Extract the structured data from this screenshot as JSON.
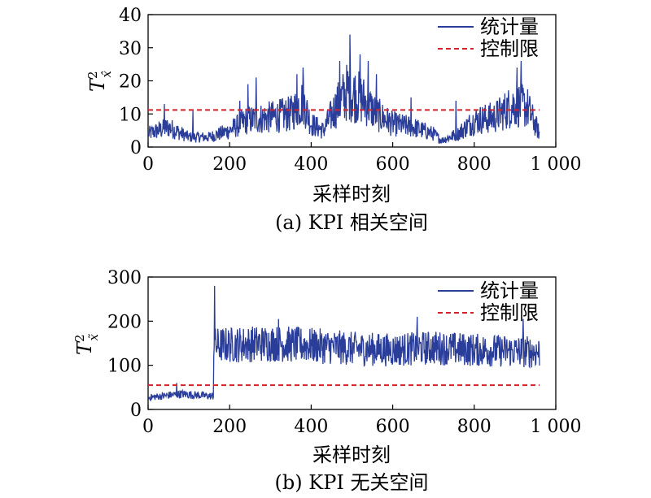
{
  "chart_data": [
    {
      "type": "line",
      "caption": "(a) KPI 相关空间",
      "xlabel": "采样时刻",
      "ylabel": "T²x̂",
      "ylabel_main": "T",
      "ylabel_sup": "2",
      "ylabel_sub": "x̂",
      "xlim": [
        0,
        1000
      ],
      "ylim": [
        0,
        40
      ],
      "x_ticks": [
        0,
        200,
        400,
        600,
        800,
        1000
      ],
      "x_tick_labels": [
        "0",
        "200",
        "400",
        "600",
        "800",
        "1 000"
      ],
      "y_ticks": [
        0,
        10,
        20,
        30,
        40
      ],
      "y_tick_labels": [
        "0",
        "10",
        "20",
        "30",
        "40"
      ],
      "legend": "top-right",
      "grid": false,
      "series": [
        {
          "name": "统计量",
          "style": "solid",
          "color": "#2a3d99",
          "x_start": 1,
          "x_end": 960,
          "profile": [
            [
              0,
              4
            ],
            [
              50,
              6
            ],
            [
              100,
              3
            ],
            [
              150,
              3
            ],
            [
              200,
              5
            ],
            [
              240,
              8
            ],
            [
              300,
              9
            ],
            [
              350,
              10
            ],
            [
              380,
              14
            ],
            [
              400,
              7
            ],
            [
              430,
              5
            ],
            [
              460,
              12
            ],
            [
              490,
              17
            ],
            [
              530,
              14
            ],
            [
              560,
              10
            ],
            [
              600,
              7
            ],
            [
              650,
              6
            ],
            [
              700,
              4
            ],
            [
              720,
              2
            ],
            [
              760,
              4
            ],
            [
              800,
              8
            ],
            [
              850,
              9
            ],
            [
              900,
              13
            ],
            [
              930,
              12
            ],
            [
              960,
              4
            ]
          ],
          "spikes": [
            [
              40,
              13
            ],
            [
              110,
              11
            ],
            [
              225,
              14
            ],
            [
              245,
              19
            ],
            [
              265,
              21
            ],
            [
              365,
              22
            ],
            [
              380,
              24
            ],
            [
              470,
              26
            ],
            [
              495,
              34
            ],
            [
              520,
              28
            ],
            [
              540,
              26
            ],
            [
              560,
              22
            ],
            [
              645,
              15
            ],
            [
              755,
              14
            ],
            [
              905,
              24
            ],
            [
              915,
              26
            ]
          ]
        },
        {
          "name": "控制限",
          "style": "dashed",
          "color": "#d4212a",
          "x": [
            0,
            960
          ],
          "y": [
            11.2,
            11.2
          ]
        }
      ]
    },
    {
      "type": "line",
      "caption": "(b) KPI 无关空间",
      "xlabel": "采样时刻",
      "ylabel": "T²x̃",
      "ylabel_main": "T",
      "ylabel_sup": "2",
      "ylabel_sub": "x̃",
      "xlim": [
        0,
        1000
      ],
      "ylim": [
        0,
        300
      ],
      "x_ticks": [
        0,
        200,
        400,
        600,
        800,
        1000
      ],
      "x_tick_labels": [
        "0",
        "200",
        "400",
        "600",
        "800",
        "1 000"
      ],
      "y_ticks": [
        0,
        100,
        200,
        300
      ],
      "y_tick_labels": [
        "0",
        "100",
        "200",
        "300"
      ],
      "legend": "top-right",
      "grid": false,
      "series": [
        {
          "name": "统计量",
          "style": "solid",
          "color": "#2a3d99",
          "x_start": 1,
          "x_end": 960,
          "profile": [
            [
              0,
              27
            ],
            [
              80,
              35
            ],
            [
              160,
              30
            ],
            [
              161,
              145
            ],
            [
              300,
              150
            ],
            [
              400,
              145
            ],
            [
              500,
              138
            ],
            [
              600,
              135
            ],
            [
              700,
              140
            ],
            [
              800,
              135
            ],
            [
              960,
              130
            ]
          ],
          "spikes": [
            [
              70,
              60
            ],
            [
              163,
              280
            ],
            [
              320,
              205
            ],
            [
              660,
              210
            ],
            [
              920,
              205
            ]
          ]
        },
        {
          "name": "控制限",
          "style": "dashed",
          "color": "#d4212a",
          "x": [
            0,
            960
          ],
          "y": [
            55,
            55
          ]
        }
      ]
    }
  ]
}
